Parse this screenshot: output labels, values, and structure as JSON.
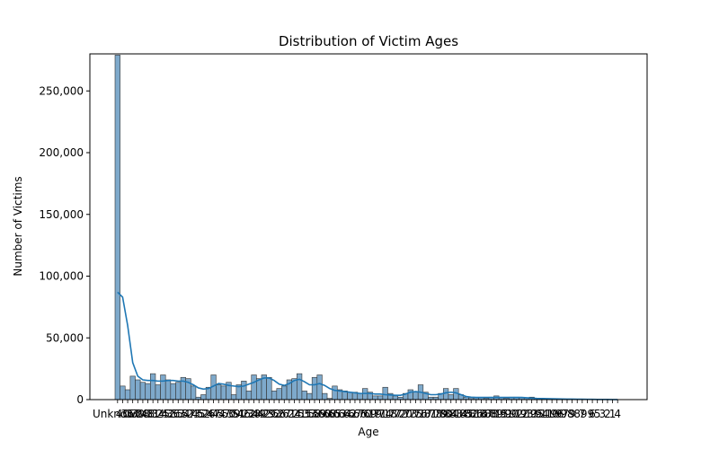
{
  "chart_data": {
    "type": "bar",
    "title": "Distribution of Victim Ages",
    "xlabel": "Age",
    "ylabel": "Number of Victims",
    "ylim": [
      0,
      280000
    ],
    "yticks": [
      0,
      50000,
      100000,
      150000,
      200000,
      250000
    ],
    "ytick_labels": [
      "0",
      "50,000",
      "100,000",
      "150,000",
      "200,000",
      "250,000"
    ],
    "first_category": "Unknown",
    "last_category": "4",
    "xtick_labels": [
      "Unknown",
      "40",
      "35",
      "37",
      "30",
      "28",
      "48",
      "31",
      "34",
      "25",
      "42",
      "36",
      "53",
      "54",
      "57",
      "23",
      "45",
      "52",
      "26",
      "47",
      "44",
      "57",
      "50",
      "39",
      "51",
      "46",
      "22",
      "38",
      "49",
      "42",
      "29",
      "32",
      "56",
      "27",
      "61",
      "24",
      "21",
      "55",
      "33",
      "58",
      "59",
      "60",
      "68",
      "65",
      "63",
      "64",
      "62",
      "67",
      "66",
      "70",
      "69",
      "19",
      "71",
      "74",
      "18",
      "77",
      "72",
      "20",
      "73",
      "75",
      "76",
      "17",
      "81",
      "78",
      "79",
      "80",
      "84",
      "83",
      "14",
      "85",
      "82",
      "86",
      "16",
      "87",
      "88",
      "89",
      "15",
      "91",
      "90",
      "92",
      "12",
      "93",
      "13",
      "95",
      "94",
      "11",
      "10",
      "96",
      "97",
      "98",
      "9",
      "8",
      "7",
      "99",
      "6",
      "5",
      "3",
      "2",
      "1",
      "4"
    ],
    "values": [
      279000,
      11000,
      8000,
      19000,
      16000,
      14000,
      13000,
      21000,
      12000,
      20000,
      16000,
      13000,
      14000,
      18000,
      17000,
      11000,
      2000,
      4000,
      10000,
      20000,
      12000,
      11000,
      14000,
      4000,
      12000,
      15000,
      7000,
      20000,
      17000,
      20000,
      18000,
      7000,
      9000,
      11000,
      16000,
      17000,
      21000,
      7000,
      5000,
      18000,
      20000,
      5000,
      1000,
      11000,
      8000,
      7000,
      6000,
      6000,
      5000,
      9000,
      6000,
      3000,
      3000,
      10000,
      5000,
      3000,
      2000,
      5000,
      8000,
      6000,
      12000,
      6000,
      2000,
      2000,
      5000,
      9000,
      4000,
      9000,
      4000,
      2000,
      1500,
      1500,
      1500,
      1000,
      2000,
      3000,
      1500,
      1000,
      2000,
      2000,
      1500,
      1500,
      2000,
      1000,
      1000,
      800,
      600,
      500,
      500,
      400,
      400,
      300,
      300,
      200,
      200,
      150,
      100,
      100,
      100,
      50
    ],
    "kde": {
      "color": "#1f77b4",
      "values": [
        87000,
        83000,
        60000,
        30000,
        19000,
        16000,
        15500,
        15500,
        15000,
        15000,
        15500,
        15500,
        15000,
        15000,
        14000,
        12000,
        9500,
        8500,
        9000,
        11000,
        13000,
        12500,
        11500,
        11000,
        10500,
        11000,
        12500,
        14000,
        16000,
        17500,
        17500,
        15500,
        12500,
        11500,
        13000,
        15500,
        16500,
        14500,
        12000,
        12000,
        13000,
        11500,
        9000,
        7500,
        7000,
        6500,
        6000,
        5500,
        5000,
        5000,
        5000,
        4500,
        4500,
        4000,
        3800,
        3500,
        3500,
        4500,
        6000,
        6500,
        6000,
        5000,
        4000,
        4000,
        4500,
        5500,
        6000,
        5500,
        4000,
        2500,
        2000,
        1800,
        1800,
        1800,
        1800,
        1800,
        1800,
        1800,
        1800,
        1800,
        1800,
        1500,
        1200,
        1000,
        900,
        800,
        700,
        600,
        500,
        450,
        400,
        350,
        300,
        250,
        200,
        150,
        120,
        100,
        80,
        50
      ]
    },
    "bar_color": "#7ea9cb",
    "grid": false,
    "legend": "none"
  }
}
